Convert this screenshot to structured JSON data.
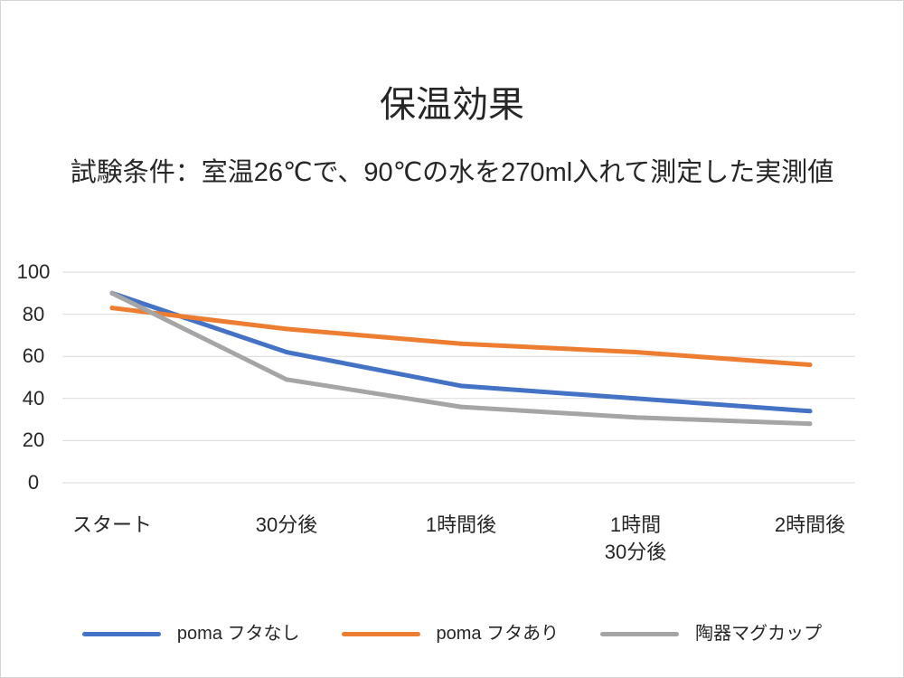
{
  "chart_data": {
    "type": "line",
    "title": "保温効果",
    "subtitle": "試験条件：室温26℃で、90℃の水を270ml入れて測定した実測値",
    "categories": [
      "スタート",
      "30分後",
      "1時間後",
      "1時間\n30分後",
      "2時間後"
    ],
    "series": [
      {
        "name": "poma フタなし",
        "color": "#4472C4",
        "values": [
          90,
          62,
          46,
          40,
          34
        ]
      },
      {
        "name": "poma フタあり",
        "color": "#ED7D31",
        "values": [
          83,
          73,
          66,
          62,
          56
        ]
      },
      {
        "name": "陶器マグカップ",
        "color": "#A5A5A5",
        "values": [
          90,
          49,
          36,
          31,
          28
        ]
      }
    ],
    "ylim": [
      0,
      100
    ],
    "yticks": [
      0,
      20,
      40,
      60,
      80,
      100
    ],
    "grid": true,
    "gridline_color": "#D9D9D9",
    "legend": "bottom"
  }
}
